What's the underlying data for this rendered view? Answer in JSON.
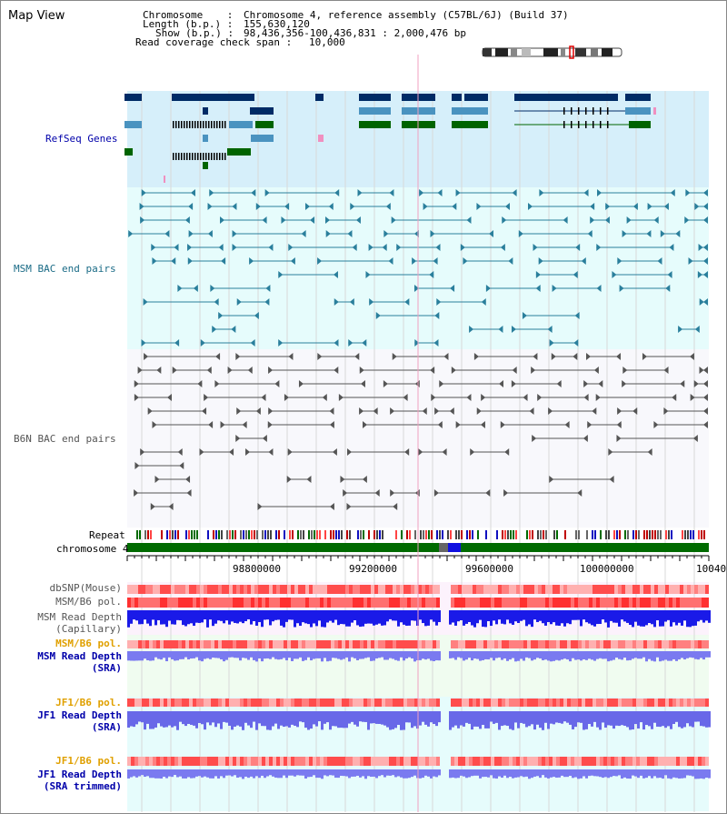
{
  "window": {
    "title": "Map View"
  },
  "header": {
    "chromosome_label": "Chromosome    :",
    "chromosome_value": "Chromosome 4, reference assembly (C57BL/6J) (Build 37)",
    "length_label": "Length (b.p.) :",
    "length_value": "155,630,120",
    "show_label": "Show (b.p.) :",
    "show_value": "98,436,356-100,436,831 : 2,000,476 bp",
    "coverage_label": "Read coverage check span :",
    "coverage_value": "10,000"
  },
  "tracks": {
    "refseq": "RefSeq Genes",
    "msm_bac": "MSM BAC end pairs",
    "b6n_bac": "B6N BAC end pairs",
    "repeat": "Repeat",
    "chromosome": "chromosome 4"
  },
  "axis": {
    "ticks": [
      "98800000",
      "99200000",
      "99600000",
      "100000000",
      "10040"
    ]
  },
  "lower_tracks": {
    "dbsnp": "dbSNP(Mouse)",
    "msm_b6_pol_1": "MSM/B6 pol.",
    "msm_read_depth_cap_1": "MSM Read Depth",
    "msm_read_depth_cap_2": "(Capillary)",
    "msm_b6_pol_2": "MSM/B6 pol.",
    "msm_read_depth_sra_1": "MSM Read Depth",
    "msm_read_depth_sra_2": "(SRA)",
    "jf1_b6_pol_1": "JF1/B6 pol.",
    "jf1_read_depth_sra_1": "JF1 Read Depth",
    "jf1_read_depth_sra_2": "(SRA)",
    "jf1_b6_pol_2": "JF1/B6 pol.",
    "jf1_read_depth_trim_1": "JF1 Read Depth",
    "jf1_read_depth_trim_2": "(SRA trimmed)"
  },
  "colors": {
    "refseq_bg": "#d6effa",
    "msm_bac_bg": "#e6fcfc",
    "b6n_bac_bg": "#f8f8fc",
    "lower_bg1": "#fcf2fc",
    "lower_bg2": "#f0fcf0",
    "lower_bg3": "#e6fcfc",
    "gene_dark": "#002b66",
    "gene_mid": "#4a93c0",
    "gene_green": "#006400",
    "msm_pair": "#2a7f9c",
    "b6n_pair": "#555555",
    "chrom_green": "#006b00",
    "label_blue": "#0000aa",
    "label_teal": "#1a6b86",
    "label_gray": "#555555",
    "label_orange": "#e0a000"
  }
}
